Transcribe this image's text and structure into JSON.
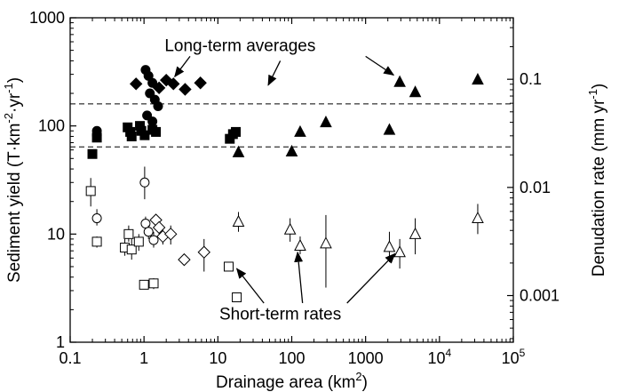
{
  "chart_data": {
    "type": "scatter",
    "x_axis": {
      "label_main": "Drainage area (km",
      "label_sup": "2",
      "label_end": ")",
      "scale": "log",
      "range": [
        0.1,
        100000
      ],
      "ticks": [
        {
          "value": 0.1,
          "base": "0.1",
          "exp": ""
        },
        {
          "value": 1,
          "base": "1",
          "exp": ""
        },
        {
          "value": 10,
          "base": "10",
          "exp": ""
        },
        {
          "value": 100,
          "base": "100",
          "exp": ""
        },
        {
          "value": 1000,
          "base": "1000",
          "exp": ""
        },
        {
          "value": 10000,
          "base": "10",
          "exp": "4"
        },
        {
          "value": 100000,
          "base": "10",
          "exp": "5"
        }
      ]
    },
    "y_axis": {
      "label_parts": [
        {
          "t": "Sediment yield (T·km",
          "sup": false
        },
        {
          "t": "-2",
          "sup": true
        },
        {
          "t": "·yr",
          "sup": false
        },
        {
          "t": "-1",
          "sup": true
        },
        {
          "t": ")",
          "sup": false
        }
      ],
      "scale": "log",
      "range": [
        1,
        1000
      ],
      "ticks": [
        {
          "value": 1,
          "label": "1"
        },
        {
          "value": 10,
          "label": "10"
        },
        {
          "value": 100,
          "label": "100"
        },
        {
          "value": 1000,
          "label": "1000"
        }
      ]
    },
    "y2_axis": {
      "label_parts": [
        {
          "t": "Denudation rate (mm yr",
          "sup": false
        },
        {
          "t": "-1",
          "sup": true
        },
        {
          "t": ")",
          "sup": false
        }
      ],
      "scale": "log",
      "ticks": [
        {
          "value": 0.001,
          "label": "0.001"
        },
        {
          "value": 0.01,
          "label": "0.01"
        },
        {
          "value": 0.1,
          "label": "0.1"
        }
      ],
      "conversion_y_per_y2": 2700
    },
    "grid": false,
    "reference_lines": [
      {
        "y": 160,
        "style": "dashed"
      },
      {
        "y": 64,
        "style": "dashed"
      }
    ],
    "annotations": [
      {
        "text": "Long-term averages",
        "x": 20,
        "y": 560
      },
      {
        "text": "Short-term rates",
        "x": 70,
        "y": 1.85
      }
    ],
    "arrows": [
      {
        "from": [
          4.2,
          440
        ],
        "to": [
          2.6,
          285
        ]
      },
      {
        "from": [
          70,
          400
        ],
        "to": [
          48,
          238
        ]
      },
      {
        "from": [
          1000,
          440
        ],
        "to": [
          2400,
          295
        ]
      },
      {
        "from": [
          42,
          2.3
        ],
        "to": [
          18,
          4.8
        ]
      },
      {
        "from": [
          140,
          2.3
        ],
        "to": [
          120,
          6.8
        ]
      },
      {
        "from": [
          560,
          2.3
        ],
        "to": [
          2500,
          6.6
        ]
      }
    ],
    "series": [
      {
        "marker": "circle-filled",
        "points": [
          {
            "x": 0.23,
            "y": 90
          },
          {
            "x": 0.23,
            "y": 82
          },
          {
            "x": 1.05,
            "y": 330
          },
          {
            "x": 1.15,
            "y": 290
          },
          {
            "x": 1.3,
            "y": 250
          },
          {
            "x": 1.2,
            "y": 200
          },
          {
            "x": 1.4,
            "y": 175
          },
          {
            "x": 1.55,
            "y": 152
          },
          {
            "x": 1.1,
            "y": 125
          },
          {
            "x": 1.3,
            "y": 110
          }
        ]
      },
      {
        "marker": "square-filled",
        "points": [
          {
            "x": 0.2,
            "y": 55
          },
          {
            "x": 0.23,
            "y": 78
          },
          {
            "x": 0.6,
            "y": 97
          },
          {
            "x": 0.65,
            "y": 88
          },
          {
            "x": 0.68,
            "y": 80
          },
          {
            "x": 0.88,
            "y": 100
          },
          {
            "x": 0.92,
            "y": 90
          },
          {
            "x": 1.02,
            "y": 82
          },
          {
            "x": 1.3,
            "y": 92
          },
          {
            "x": 1.45,
            "y": 88
          },
          {
            "x": 14.5,
            "y": 76
          },
          {
            "x": 16,
            "y": 84
          },
          {
            "x": 17.5,
            "y": 88
          }
        ]
      },
      {
        "marker": "diamond-filled",
        "points": [
          {
            "x": 0.78,
            "y": 245
          },
          {
            "x": 1.6,
            "y": 225
          },
          {
            "x": 2.0,
            "y": 265
          },
          {
            "x": 2.5,
            "y": 245
          },
          {
            "x": 3.6,
            "y": 218
          },
          {
            "x": 5.8,
            "y": 250
          }
        ]
      },
      {
        "marker": "triangle-filled",
        "points": [
          {
            "x": 19,
            "y": 57
          },
          {
            "x": 100,
            "y": 58
          },
          {
            "x": 130,
            "y": 88
          },
          {
            "x": 290,
            "y": 108
          },
          {
            "x": 2100,
            "y": 92
          },
          {
            "x": 2900,
            "y": 255
          },
          {
            "x": 4700,
            "y": 205
          },
          {
            "x": 33000,
            "y": 268
          }
        ]
      },
      {
        "marker": "square-open",
        "points": [
          {
            "x": 0.19,
            "y": 25,
            "err": [
              18,
              33
            ]
          },
          {
            "x": 0.23,
            "y": 8.5,
            "err": [
              7.5,
              9.5
            ]
          },
          {
            "x": 0.55,
            "y": 7.5,
            "err": [
              6.3,
              9
            ]
          },
          {
            "x": 0.62,
            "y": 10,
            "err": [
              8.5,
              12
            ]
          },
          {
            "x": 0.68,
            "y": 7.2,
            "err": [
              5.8,
              9
            ]
          },
          {
            "x": 0.85,
            "y": 8.5,
            "err": [
              7,
              10
            ]
          },
          {
            "x": 1.0,
            "y": 3.4,
            "err": [
              3.1,
              3.7
            ]
          },
          {
            "x": 1.35,
            "y": 3.5,
            "err": [
              3.1,
              3.9
            ]
          },
          {
            "x": 14,
            "y": 5.0,
            "err": [
              4.6,
              5.5
            ]
          },
          {
            "x": 18,
            "y": 2.6,
            "err": [
              2.4,
              2.8
            ]
          }
        ]
      },
      {
        "marker": "circle-open",
        "points": [
          {
            "x": 0.23,
            "y": 14,
            "err": [
              12,
              17
            ]
          },
          {
            "x": 1.02,
            "y": 30,
            "err": [
              21,
              42
            ]
          },
          {
            "x": 1.05,
            "y": 12.5,
            "err": [
              10.5,
              14.5
            ]
          },
          {
            "x": 1.15,
            "y": 10.5,
            "err": [
              9,
              12
            ]
          },
          {
            "x": 1.35,
            "y": 8.8,
            "err": [
              7.5,
              10.5
            ]
          }
        ]
      },
      {
        "marker": "diamond-open",
        "points": [
          {
            "x": 1.45,
            "y": 13.5,
            "err": [
              12,
              15
            ]
          },
          {
            "x": 1.6,
            "y": 11.5,
            "err": [
              10,
              13
            ]
          },
          {
            "x": 1.8,
            "y": 9.5,
            "err": [
              8,
              11
            ]
          },
          {
            "x": 2.3,
            "y": 10,
            "err": [
              8,
              12
            ]
          },
          {
            "x": 3.5,
            "y": 5.8,
            "err": [
              5.2,
              6.5
            ]
          },
          {
            "x": 6.5,
            "y": 6.8,
            "err": [
              4.5,
              9
            ]
          }
        ]
      },
      {
        "marker": "triangle-open",
        "points": [
          {
            "x": 19,
            "y": 13,
            "err": [
              10.5,
              16
            ]
          },
          {
            "x": 95,
            "y": 11,
            "err": [
              8.5,
              14
            ]
          },
          {
            "x": 130,
            "y": 7.8,
            "err": [
              6.5,
              9.5
            ]
          },
          {
            "x": 290,
            "y": 8.2,
            "err": [
              3.2,
              15
            ]
          },
          {
            "x": 2100,
            "y": 7.6,
            "err": [
              5.5,
              10.5
            ]
          },
          {
            "x": 2900,
            "y": 6.8,
            "err": [
              4.8,
              9
            ]
          },
          {
            "x": 4700,
            "y": 10,
            "err": [
              6.5,
              14
            ]
          },
          {
            "x": 33000,
            "y": 14,
            "err": [
              10,
              19
            ]
          }
        ]
      }
    ]
  }
}
